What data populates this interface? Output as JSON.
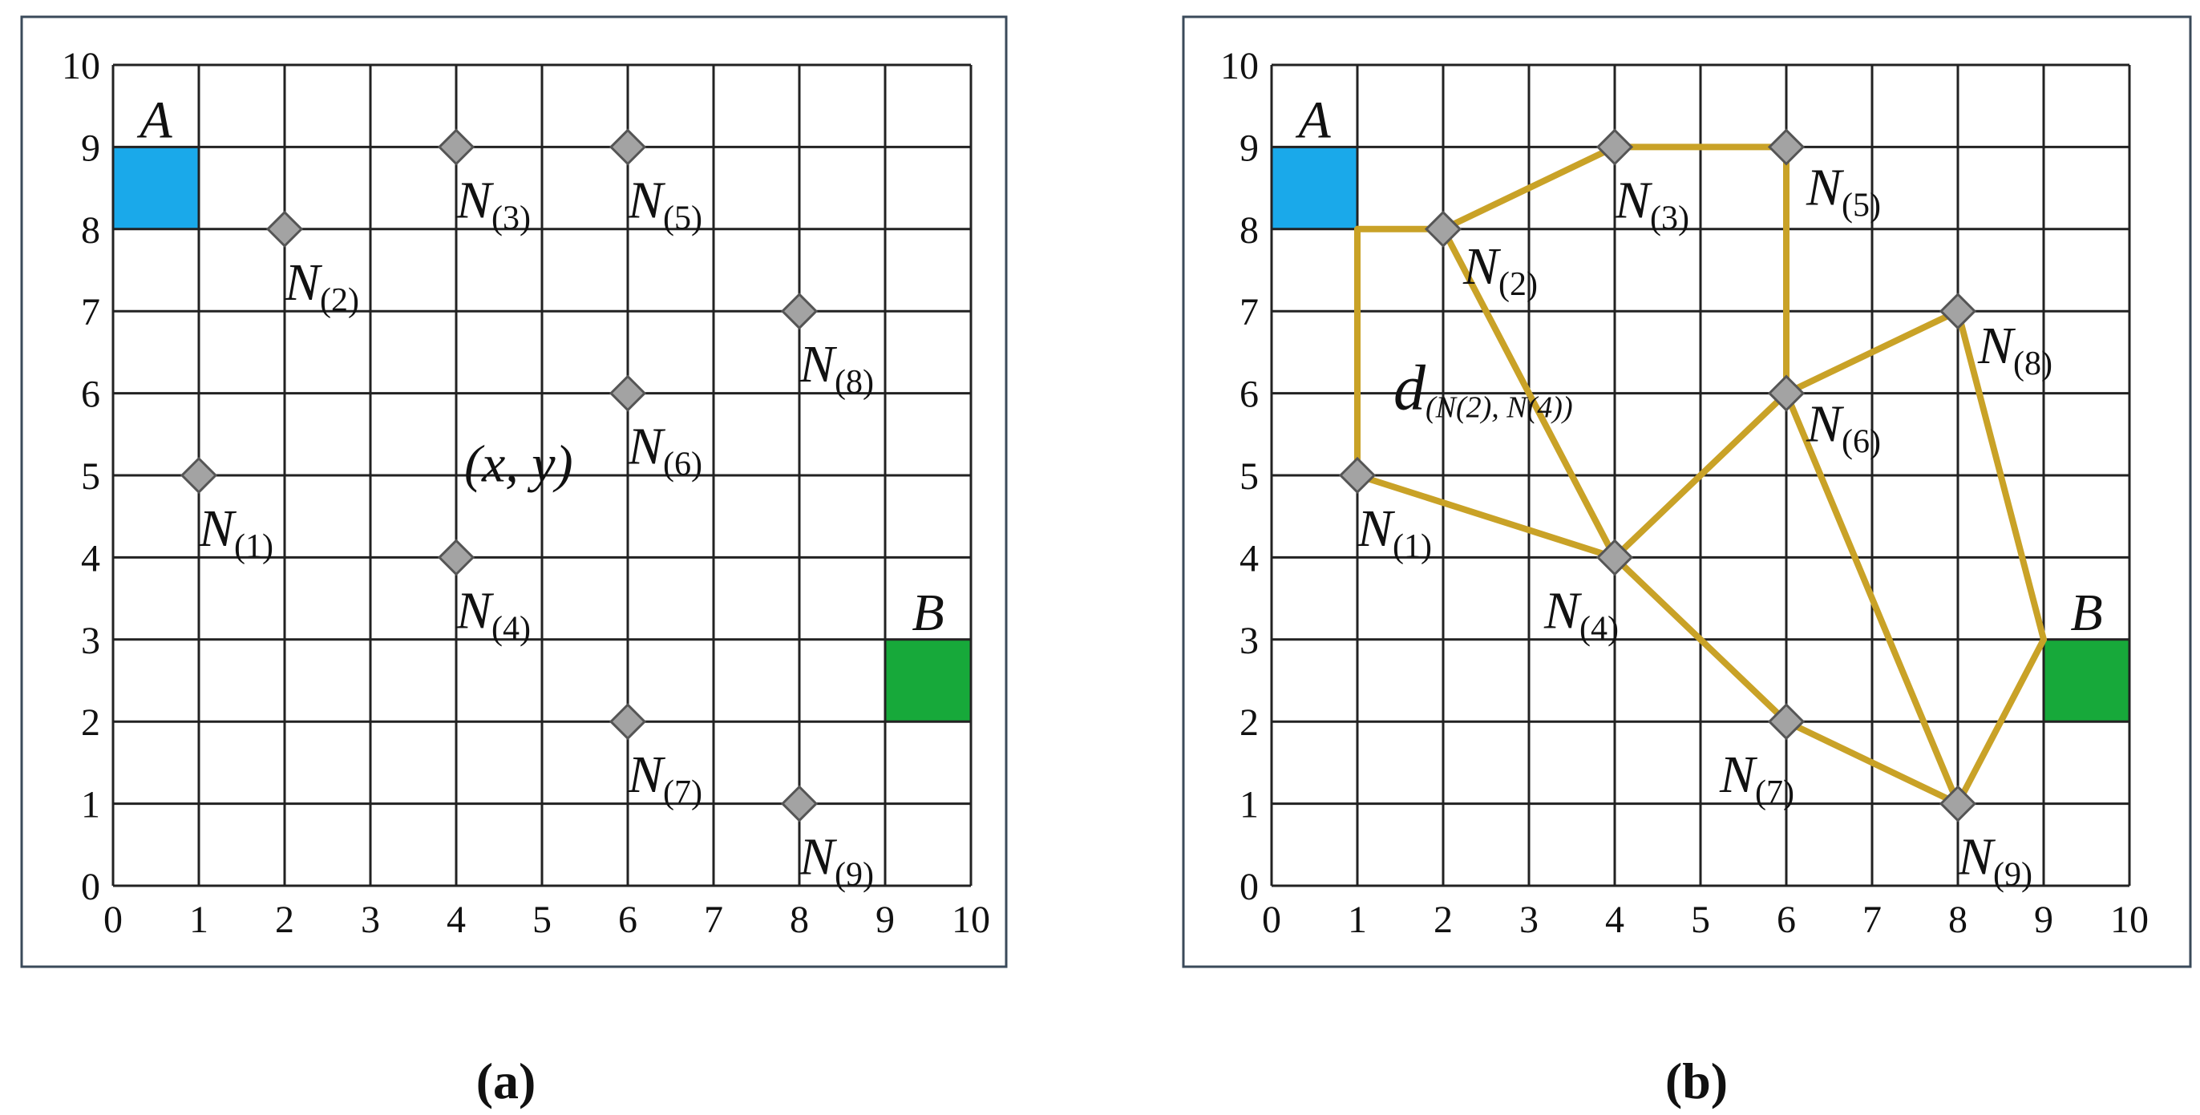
{
  "chart_data": [
    {
      "type": "scatter",
      "caption": "(a)",
      "xlim": [
        0,
        10
      ],
      "ylim": [
        0,
        10
      ],
      "xticks": [
        0,
        1,
        2,
        3,
        4,
        5,
        6,
        7,
        8,
        9,
        10
      ],
      "yticks": [
        0,
        1,
        2,
        3,
        4,
        5,
        6,
        7,
        8,
        9,
        10
      ],
      "grid": true,
      "regions": [
        {
          "label": "A",
          "color": "#1aa9ea",
          "x": [
            0,
            1
          ],
          "y": [
            8,
            9
          ]
        },
        {
          "label": "B",
          "color": "#17a93a",
          "x": [
            9,
            10
          ],
          "y": [
            2,
            3
          ]
        }
      ],
      "series": [
        {
          "color": "#a3a3a3",
          "x": [
            1,
            2,
            4,
            4,
            6,
            6,
            6,
            8,
            8
          ],
          "values": [
            5,
            8,
            9,
            4,
            9,
            6,
            2,
            7,
            1
          ],
          "labels": [
            {
              "text": "N",
              "sub": "(1)"
            },
            {
              "text": "N",
              "sub": "(2)"
            },
            {
              "text": "N",
              "sub": "(3)"
            },
            {
              "text": "N",
              "sub": "(4)"
            },
            {
              "text": "N",
              "sub": "(5)"
            },
            {
              "text": "N",
              "sub": "(6)"
            },
            {
              "text": "N",
              "sub": "(7)"
            },
            {
              "text": "N",
              "sub": "(8)"
            },
            {
              "text": "N",
              "sub": "(9)"
            }
          ]
        }
      ],
      "annotation": {
        "text": "(x, y)"
      }
    },
    {
      "type": "scatter",
      "caption": "(b)",
      "xlim": [
        0,
        10
      ],
      "ylim": [
        0,
        10
      ],
      "xticks": [
        0,
        1,
        2,
        3,
        4,
        5,
        6,
        7,
        8,
        9,
        10
      ],
      "yticks": [
        0,
        1,
        2,
        3,
        4,
        5,
        6,
        7,
        8,
        9,
        10
      ],
      "grid": true,
      "regions": [
        {
          "label": "A",
          "color": "#1aa9ea",
          "x": [
            0,
            1
          ],
          "y": [
            8,
            9
          ]
        },
        {
          "label": "B",
          "color": "#17a93a",
          "x": [
            9,
            10
          ],
          "y": [
            2,
            3
          ]
        }
      ],
      "edge_color": "#c9a227",
      "edges": [
        {
          "x": [
            1,
            2
          ],
          "y": [
            8,
            8
          ]
        },
        {
          "x": [
            1,
            1
          ],
          "y": [
            8,
            5
          ]
        },
        {
          "x": [
            2,
            4
          ],
          "y": [
            8,
            9
          ]
        },
        {
          "x": [
            4,
            6
          ],
          "y": [
            9,
            9
          ]
        },
        {
          "x": [
            6,
            6
          ],
          "y": [
            9,
            6
          ]
        },
        {
          "x": [
            2,
            4
          ],
          "y": [
            8,
            4
          ]
        },
        {
          "x": [
            1,
            4
          ],
          "y": [
            5,
            4
          ]
        },
        {
          "x": [
            4,
            6
          ],
          "y": [
            4,
            6
          ]
        },
        {
          "x": [
            6,
            8
          ],
          "y": [
            6,
            7
          ]
        },
        {
          "x": [
            8,
            9
          ],
          "y": [
            7,
            3
          ]
        },
        {
          "x": [
            6,
            8
          ],
          "y": [
            6,
            1
          ]
        },
        {
          "x": [
            4,
            6
          ],
          "y": [
            4,
            2
          ]
        },
        {
          "x": [
            6,
            8
          ],
          "y": [
            2,
            1
          ]
        },
        {
          "x": [
            8,
            9
          ],
          "y": [
            1,
            3
          ]
        }
      ],
      "series": [
        {
          "color": "#a3a3a3",
          "x": [
            1,
            2,
            4,
            4,
            6,
            6,
            6,
            8,
            8
          ],
          "values": [
            5,
            8,
            9,
            4,
            9,
            6,
            2,
            7,
            1
          ],
          "labels": [
            {
              "text": "N",
              "sub": "(1)"
            },
            {
              "text": "N",
              "sub": "(2)"
            },
            {
              "text": "N",
              "sub": "(3)"
            },
            {
              "text": "N",
              "sub": "(4)"
            },
            {
              "text": "N",
              "sub": "(5)"
            },
            {
              "text": "N",
              "sub": "(6)"
            },
            {
              "text": "N",
              "sub": "(7)"
            },
            {
              "text": "N",
              "sub": "(8)"
            },
            {
              "text": "N",
              "sub": "(9)"
            }
          ]
        }
      ],
      "annotation": {
        "text": "d",
        "sub": "(N(2), N(4))"
      }
    }
  ]
}
